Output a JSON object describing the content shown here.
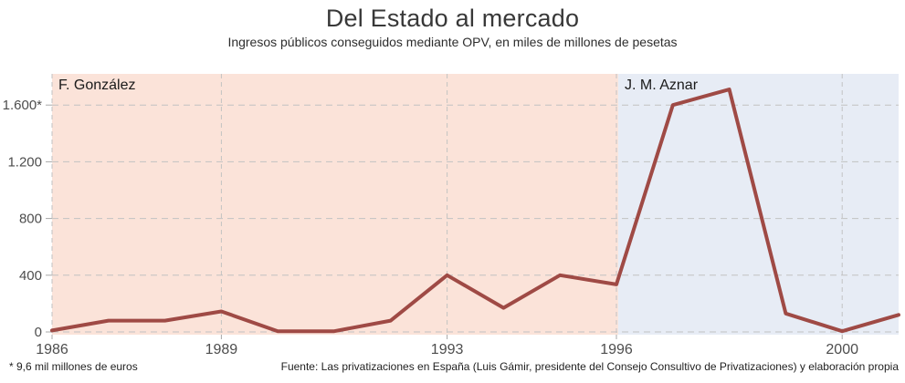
{
  "chart_data": {
    "type": "line",
    "title": "Del Estado al mercado",
    "subtitle": "Ingresos públicos conseguidos mediante OPV, en miles de millones de pesetas",
    "x": [
      1986,
      1987,
      1988,
      1989,
      1990,
      1991,
      1992,
      1993,
      1994,
      1995,
      1996,
      1997,
      1998,
      1999,
      2000,
      2001
    ],
    "values": [
      10,
      80,
      80,
      145,
      5,
      5,
      80,
      400,
      170,
      400,
      335,
      1600,
      1710,
      130,
      5,
      120
    ],
    "series_name": "Ingresos públicos por OPV (miles de millones de pesetas)",
    "xlabel": "",
    "ylabel": "",
    "ylim": [
      0,
      1820
    ],
    "x_domain": [
      1986,
      2001
    ],
    "grid": "dashed",
    "legend": "none",
    "x_tick_years": [
      1986,
      1989,
      1993,
      1996,
      2000
    ],
    "x_tick_labels": [
      "1986",
      "1989",
      "1993",
      "1996",
      "2000"
    ],
    "y_ticks": [
      0,
      400,
      800,
      1200,
      1600
    ],
    "y_tick_labels": [
      "0",
      "400",
      "800",
      "1.200",
      "1.600*"
    ],
    "line_color": "#9f4a45",
    "grid_color": "#c2c2c2",
    "tick_color": "#a8a8a8",
    "axis_text_color": "#4d4d4d",
    "regions": [
      {
        "label": "F. González",
        "start": 1986,
        "end": 1996.03,
        "color": "#fbe3d9"
      },
      {
        "label": "J. M. Aznar",
        "start": 1996.03,
        "end": 2001,
        "color": "#e7ecf5"
      }
    ],
    "footnote": "* 9,6 mil millones de euros",
    "source": "Fuente: Las privatizaciones en España (Luis Gámir, presidente del Consejo Consultivo de Privatizaciones) y elaboración propia"
  }
}
